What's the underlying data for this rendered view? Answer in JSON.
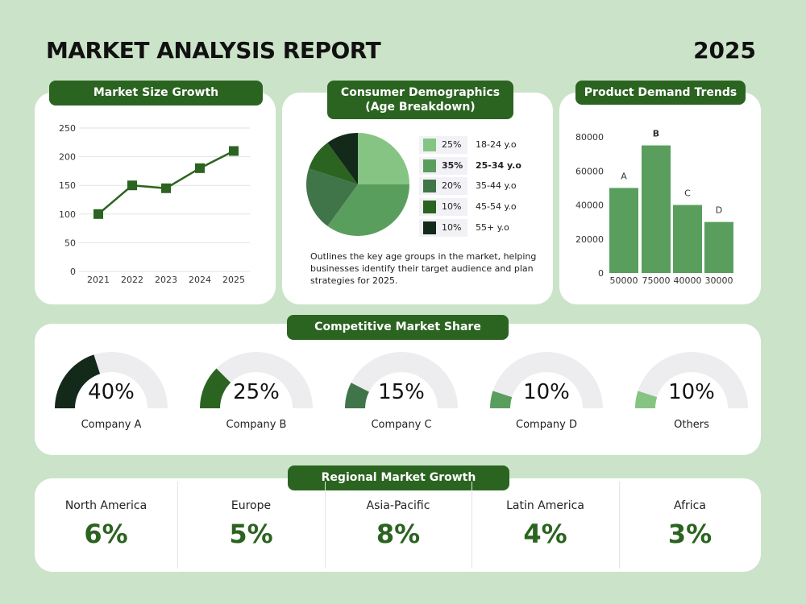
{
  "header": {
    "title": "MARKET ANALYSIS REPORT",
    "year": "2025"
  },
  "colors": {
    "background": "#cbe4c9",
    "accent": "#2b6420",
    "bar": "#5a9e5e",
    "track": "#ededf0"
  },
  "chart_data": [
    {
      "type": "line",
      "title": "Market Size Growth",
      "categories": [
        "2021",
        "2022",
        "2023",
        "2024",
        "2025"
      ],
      "values": [
        100,
        150,
        145,
        180,
        210
      ],
      "yticks": [
        0,
        50,
        100,
        150,
        200,
        250
      ],
      "ylim": [
        0,
        250
      ],
      "grid": true,
      "color": "#2b6420"
    },
    {
      "type": "pie",
      "title": "Consumer Demographics (Age Breakdown)",
      "categories": [
        "18-24 y.o",
        "25-34 y.o",
        "35-44 y.o",
        "45-54 y.o",
        "55+ y.o"
      ],
      "labels": [
        "25%",
        "35%",
        "20%",
        "10%",
        "10%"
      ],
      "values": [
        25,
        35,
        20,
        10,
        10
      ],
      "colors": [
        "#86c484",
        "#5a9e5e",
        "#3f7548",
        "#2b6420",
        "#13291a"
      ],
      "description": "Outlines the key age groups in the market, helping businesses identify their target audience and plan strategies for 2025."
    },
    {
      "type": "bar",
      "title": "Product Demand Trends",
      "categories": [
        "A",
        "B",
        "C",
        "D"
      ],
      "values": [
        50000,
        75000,
        40000,
        30000
      ],
      "value_labels": [
        "50000",
        "75000",
        "40000",
        "30000"
      ],
      "yticks": [
        0,
        20000,
        40000,
        60000,
        80000
      ],
      "ylim": [
        0,
        80000
      ],
      "color": "#5a9e5e",
      "highlight": "B"
    }
  ],
  "market_share": {
    "title": "Competitive Market Share",
    "items": [
      {
        "name": "Company A",
        "label": "40%",
        "value": 40,
        "color": "#13291a"
      },
      {
        "name": "Company B",
        "label": "25%",
        "value": 25,
        "color": "#2b6420"
      },
      {
        "name": "Company C",
        "label": "15%",
        "value": 15,
        "color": "#3f7548"
      },
      {
        "name": "Company D",
        "label": "10%",
        "value": 10,
        "color": "#5a9e5e"
      },
      {
        "name": "Others",
        "label": "10%",
        "value": 10,
        "color": "#86c484"
      }
    ]
  },
  "regional": {
    "title": "Regional Market Growth",
    "items": [
      {
        "name": "North America",
        "value": "6%"
      },
      {
        "name": "Europe",
        "value": "5%"
      },
      {
        "name": "Asia-Pacific",
        "value": "8%"
      },
      {
        "name": "Latin America",
        "value": "4%"
      },
      {
        "name": "Africa",
        "value": "3%"
      }
    ]
  }
}
